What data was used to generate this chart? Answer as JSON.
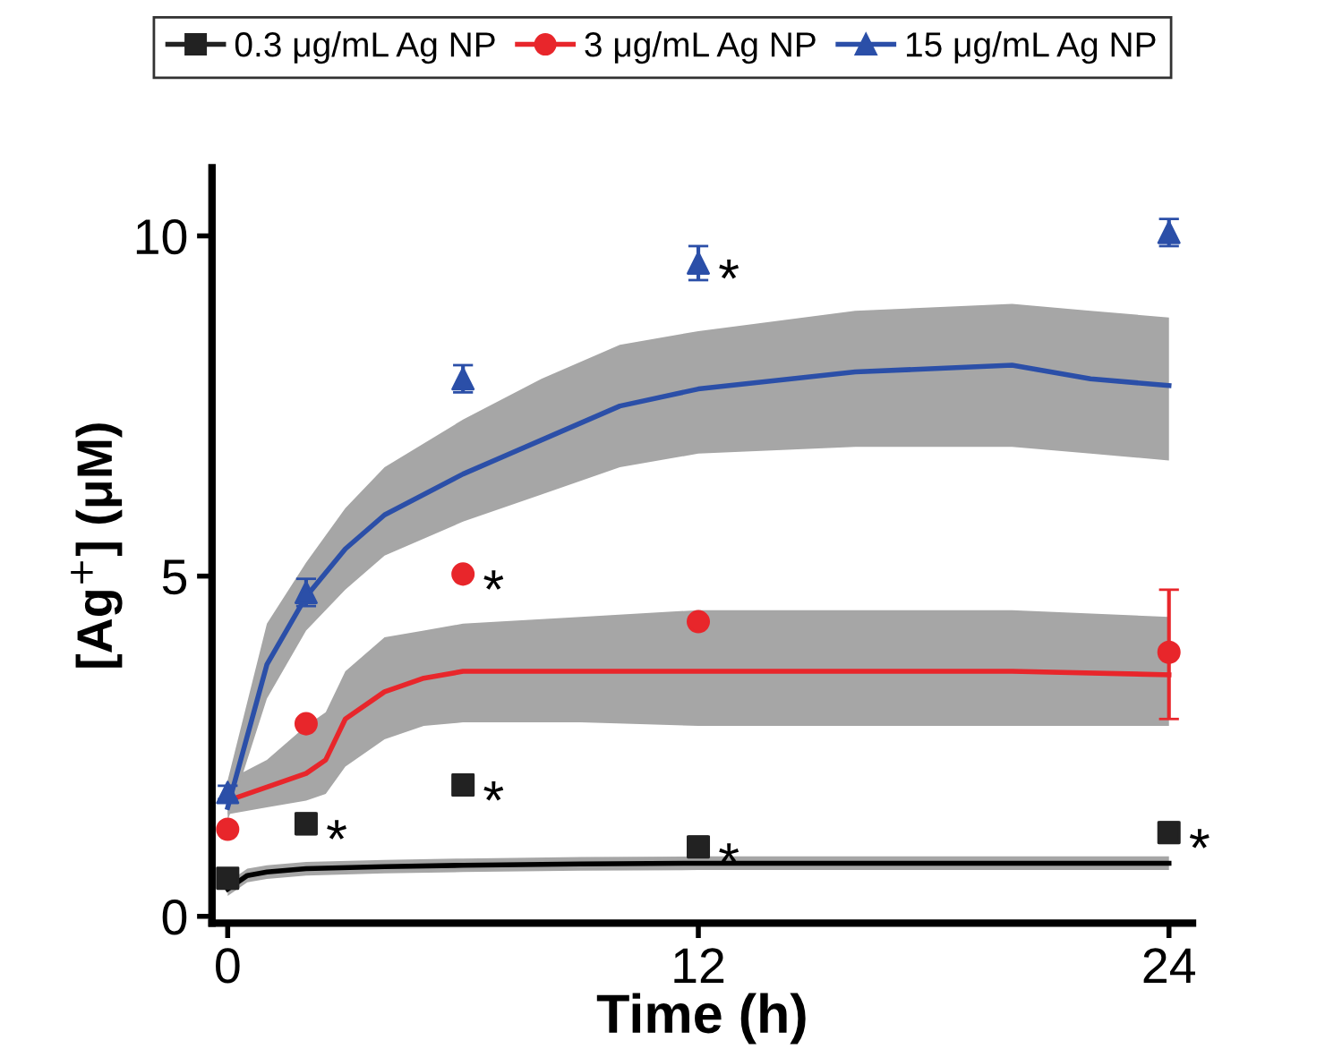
{
  "chart_data": {
    "type": "scatter",
    "xlabel": "Time (h)",
    "ylabel": "[Ag$^{+}$] (μM)",
    "xlim": [
      -0.4,
      24.6
    ],
    "xticks": [
      0,
      12,
      24
    ],
    "ylim": [
      -0.1,
      11
    ],
    "yticks": [
      0,
      5,
      10
    ],
    "grid": false,
    "legend": "top",
    "series": [
      {
        "type": "line",
        "color": "#000000",
        "x": [
          0,
          0.5,
          1,
          2,
          4,
          6,
          9,
          12,
          16,
          20,
          24
        ],
        "values": [
          0.4,
          0.6,
          0.65,
          0.7,
          0.73,
          0.75,
          0.77,
          0.78,
          0.78,
          0.78,
          0.78
        ],
        "lower": [
          0.3,
          0.5,
          0.55,
          0.6,
          0.63,
          0.65,
          0.67,
          0.68,
          0.68,
          0.68,
          0.68
        ],
        "upper": [
          0.5,
          0.7,
          0.75,
          0.8,
          0.83,
          0.85,
          0.87,
          0.88,
          0.88,
          0.88,
          0.88
        ]
      },
      {
        "type": "line",
        "color": "#e8262b",
        "x": [
          0,
          1,
          2,
          2.5,
          3,
          4,
          5,
          6,
          9,
          12,
          16,
          20,
          24
        ],
        "values": [
          1.7,
          1.9,
          2.1,
          2.3,
          2.9,
          3.3,
          3.5,
          3.6,
          3.6,
          3.6,
          3.6,
          3.6,
          3.55
        ],
        "lower": [
          1.5,
          1.6,
          1.7,
          1.8,
          2.2,
          2.6,
          2.8,
          2.85,
          2.85,
          2.8,
          2.8,
          2.8,
          2.8
        ],
        "upper": [
          2.0,
          2.3,
          2.8,
          3.0,
          3.6,
          4.1,
          4.2,
          4.3,
          4.4,
          4.5,
          4.5,
          4.5,
          4.4
        ]
      },
      {
        "type": "line",
        "color": "#2b4fa8",
        "x": [
          0,
          1,
          2,
          3,
          4,
          6,
          8,
          10,
          12,
          16,
          20,
          22,
          24
        ],
        "values": [
          1.6,
          3.7,
          4.7,
          5.4,
          5.9,
          6.5,
          7.0,
          7.5,
          7.75,
          8.0,
          8.1,
          7.9,
          7.8
        ],
        "lower": [
          1.4,
          3.2,
          4.2,
          4.8,
          5.3,
          5.8,
          6.2,
          6.6,
          6.8,
          6.9,
          6.9,
          6.8,
          6.7
        ],
        "upper": [
          2.0,
          4.3,
          5.2,
          6.0,
          6.6,
          7.3,
          7.9,
          8.4,
          8.6,
          8.9,
          9.0,
          8.9,
          8.8
        ]
      },
      {
        "name": "0.3 μg/mL Ag NP",
        "color": "#222222",
        "marker": "square",
        "x": [
          0,
          2,
          6,
          12,
          24
        ],
        "values": [
          0.56,
          1.36,
          1.93,
          1.02,
          1.23
        ],
        "errors": [
          0.1,
          0.15,
          0.08,
          0.15,
          0.15
        ]
      },
      {
        "name": "3 μg/mL Ag NP",
        "color": "#e8262b",
        "marker": "circle",
        "x": [
          0,
          2,
          6,
          12,
          24
        ],
        "values": [
          1.28,
          2.83,
          5.03,
          4.33,
          3.88
        ],
        "errors": [
          null,
          null,
          null,
          null,
          [
            2.9,
            4.8
          ]
        ]
      },
      {
        "name": "15 μg/mL Ag NP",
        "color": "#2b4fa8",
        "marker": "triangle",
        "x": [
          0,
          2,
          6,
          12,
          24
        ],
        "values": [
          1.82,
          4.76,
          7.9,
          9.6,
          10.05
        ],
        "errors": [
          0.1,
          0.2,
          0.2,
          0.25,
          0.2
        ]
      }
    ],
    "annotations": [
      {
        "text": "*",
        "x": 2,
        "y": 1.36
      },
      {
        "text": "*",
        "x": 6,
        "y": 1.93
      },
      {
        "text": "*",
        "x": 12,
        "y": 1.02
      },
      {
        "text": "*",
        "x": 24,
        "y": 1.23
      },
      {
        "text": "*",
        "x": 6,
        "y": 5.03
      },
      {
        "text": "*",
        "x": 12,
        "y": 9.6
      }
    ]
  }
}
